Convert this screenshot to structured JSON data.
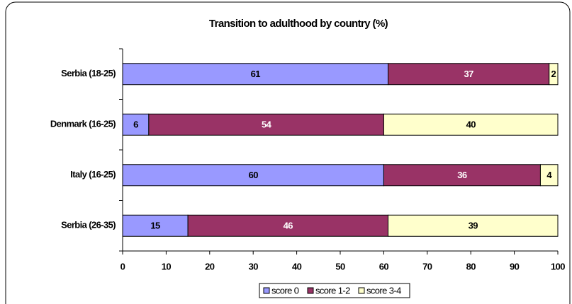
{
  "chart_data": {
    "type": "bar",
    "orientation": "horizontal",
    "stacked": true,
    "title": "Transition to adulthood by country (%)",
    "categories": [
      "Serbia (18-25)",
      "Denmark (16-25)",
      "Italy (16-25)",
      "Serbia (26-35)"
    ],
    "series": [
      {
        "name": "score 0",
        "color": "#9999ff",
        "label_color": "#000000",
        "values": [
          61,
          6,
          60,
          15
        ]
      },
      {
        "name": "score 1-2",
        "color": "#993366",
        "label_color": "#ffffff",
        "values": [
          37,
          54,
          36,
          46
        ]
      },
      {
        "name": "score 3-4",
        "color": "#ffffcc",
        "label_color": "#000000",
        "values": [
          2,
          40,
          4,
          39
        ]
      }
    ],
    "xlim": [
      0,
      100
    ],
    "xticks": [
      0,
      10,
      20,
      30,
      40,
      50,
      60,
      70,
      80,
      90,
      100
    ],
    "legend": "bottom"
  }
}
